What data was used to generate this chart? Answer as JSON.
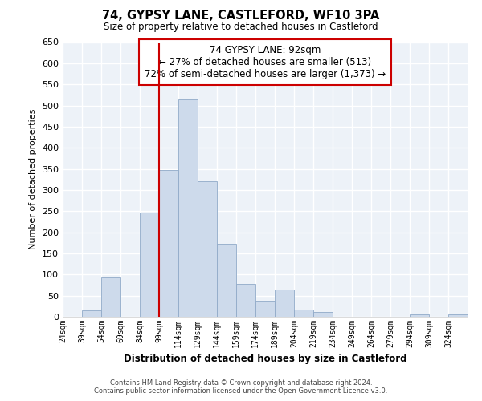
{
  "title": "74, GYPSY LANE, CASTLEFORD, WF10 3PA",
  "subtitle": "Size of property relative to detached houses in Castleford",
  "xlabel": "Distribution of detached houses by size in Castleford",
  "ylabel": "Number of detached properties",
  "bin_labels": [
    "24sqm",
    "39sqm",
    "54sqm",
    "69sqm",
    "84sqm",
    "99sqm",
    "114sqm",
    "129sqm",
    "144sqm",
    "159sqm",
    "174sqm",
    "189sqm",
    "204sqm",
    "219sqm",
    "234sqm",
    "249sqm",
    "264sqm",
    "279sqm",
    "294sqm",
    "309sqm",
    "324sqm"
  ],
  "bin_starts": [
    24,
    39,
    54,
    69,
    84,
    99,
    114,
    129,
    144,
    159,
    174,
    189,
    204,
    219,
    234,
    249,
    264,
    279,
    294,
    309,
    324
  ],
  "bin_width": 15,
  "bar_heights": [
    0,
    15,
    93,
    0,
    247,
    348,
    514,
    320,
    173,
    78,
    38,
    65,
    18,
    12,
    0,
    0,
    0,
    0,
    5,
    0,
    5
  ],
  "bar_color": "#cddaeb",
  "bar_edgecolor": "#90aac8",
  "vline_x": 99,
  "vline_color": "#cc0000",
  "ylim": [
    0,
    650
  ],
  "yticks": [
    0,
    50,
    100,
    150,
    200,
    250,
    300,
    350,
    400,
    450,
    500,
    550,
    600,
    650
  ],
  "annotation_title": "74 GYPSY LANE: 92sqm",
  "annotation_line1": "← 27% of detached houses are smaller (513)",
  "annotation_line2": "72% of semi-detached houses are larger (1,373) →",
  "footer_line1": "Contains HM Land Registry data © Crown copyright and database right 2024.",
  "footer_line2": "Contains public sector information licensed under the Open Government Licence v3.0.",
  "background_color": "#ffffff",
  "plot_bg_color": "#edf2f8",
  "grid_color": "#ffffff"
}
